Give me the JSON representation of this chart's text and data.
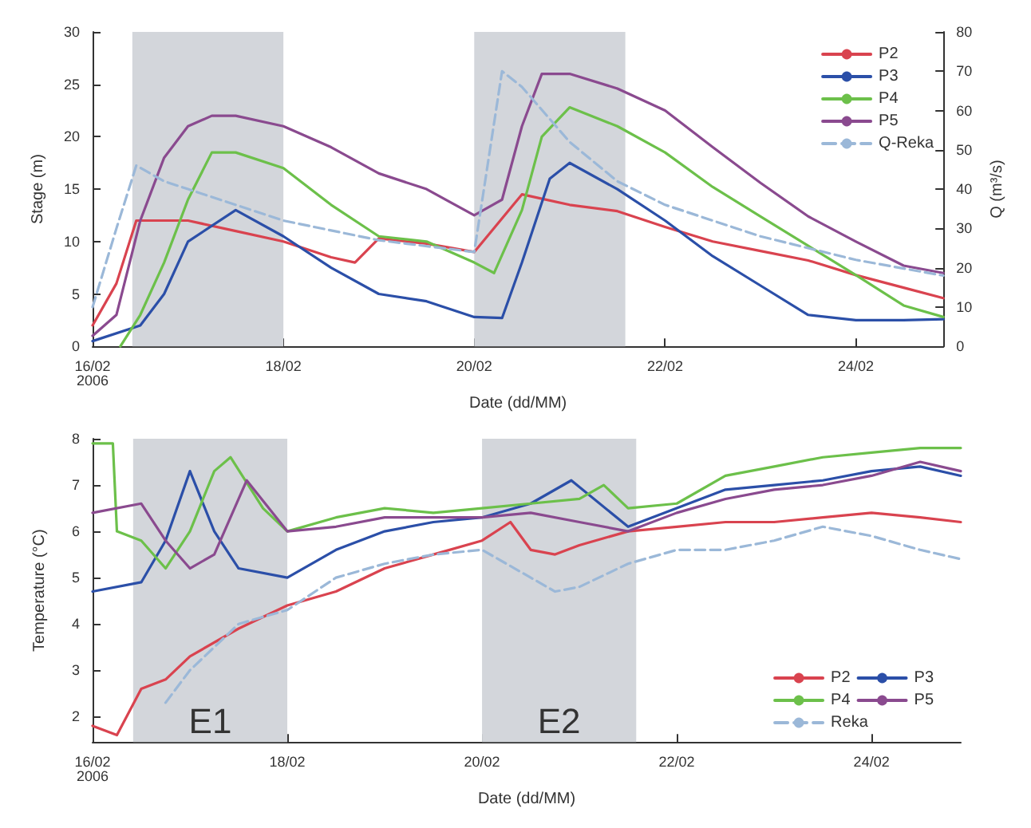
{
  "chart_data": [
    {
      "type": "line",
      "xlabel": "Date (dd/MM)",
      "ylabel": "Stage (m)",
      "y2label": "Q (m³/s)",
      "xlim": [
        "2006-02-16T00:00",
        "2006-02-24T22:00"
      ],
      "ylim": [
        0,
        30
      ],
      "y2lim": [
        0,
        80
      ],
      "xticks": [
        {
          "value": "2006-02-16T00:00",
          "label": "16/02\n2006"
        },
        {
          "value": "2006-02-18T00:00",
          "label": "18/02"
        },
        {
          "value": "2006-02-20T00:00",
          "label": "20/02"
        },
        {
          "value": "2006-02-22T00:00",
          "label": "22/02"
        },
        {
          "value": "2006-02-24T00:00",
          "label": "24/02"
        }
      ],
      "yticks": [
        0,
        5,
        10,
        15,
        20,
        25,
        30
      ],
      "y2ticks": [
        0,
        10,
        20,
        30,
        40,
        50,
        60,
        70,
        80
      ],
      "grid": false,
      "legend": "top right",
      "marker": "none",
      "bands": [
        {
          "axis": "x",
          "from": "2006-02-16T10:00",
          "to": "2006-02-18T00:00",
          "color": "#d3d6db"
        },
        {
          "axis": "x",
          "from": "2006-02-20T00:00",
          "to": "2006-02-21T14:00",
          "color": "#d3d6db"
        }
      ],
      "series": [
        {
          "name": "P2",
          "color": "#d9434f",
          "x": [
            "2006-02-16T00:00",
            "2006-02-16T06:00",
            "2006-02-16T11:00",
            "2006-02-17T00:00",
            "2006-02-17T12:00",
            "2006-02-18T00:00",
            "2006-02-18T12:00",
            "2006-02-18T18:00",
            "2006-02-19T00:00",
            "2006-02-19T12:00",
            "2006-02-20T00:00",
            "2006-02-20T12:00",
            "2006-02-21T00:00",
            "2006-02-21T12:00",
            "2006-02-22T00:00",
            "2006-02-22T12:00",
            "2006-02-23T00:00",
            "2006-02-23T12:00",
            "2006-02-24T00:00",
            "2006-02-24T12:00",
            "2006-02-24T22:00"
          ],
          "values": [
            2,
            6,
            12,
            12,
            11,
            10,
            8.5,
            8,
            10.3,
            9.8,
            9,
            14.5,
            13.5,
            12.9,
            11.4,
            10,
            9.1,
            8.2,
            6.8,
            5.6,
            4.6
          ]
        },
        {
          "name": "P3",
          "color": "#2b4fa8",
          "x": [
            "2006-02-16T00:00",
            "2006-02-16T12:00",
            "2006-02-16T18:00",
            "2006-02-17T00:00",
            "2006-02-17T12:00",
            "2006-02-18T00:00",
            "2006-02-18T12:00",
            "2006-02-19T00:00",
            "2006-02-19T12:00",
            "2006-02-20T00:00",
            "2006-02-20T07:00",
            "2006-02-20T12:00",
            "2006-02-20T19:00",
            "2006-02-21T00:00",
            "2006-02-21T12:00",
            "2006-02-22T00:00",
            "2006-02-22T12:00",
            "2006-02-23T00:00",
            "2006-02-23T12:00",
            "2006-02-24T00:00",
            "2006-02-24T12:00",
            "2006-02-24T22:00"
          ],
          "values": [
            0.5,
            2,
            5,
            10,
            13,
            10.5,
            7.5,
            5,
            4.3,
            2.8,
            2.7,
            8,
            16,
            17.5,
            15,
            12,
            8.6,
            5.8,
            3,
            2.5,
            2.5,
            2.6
          ]
        },
        {
          "name": "P4",
          "color": "#6cc04a",
          "x": [
            "2006-02-16T07:00",
            "2006-02-16T12:00",
            "2006-02-16T18:00",
            "2006-02-17T00:00",
            "2006-02-17T06:00",
            "2006-02-17T12:00",
            "2006-02-18T00:00",
            "2006-02-18T12:00",
            "2006-02-19T00:00",
            "2006-02-19T12:00",
            "2006-02-20T00:00",
            "2006-02-20T05:00",
            "2006-02-20T12:00",
            "2006-02-20T17:00",
            "2006-02-21T00:00",
            "2006-02-21T12:00",
            "2006-02-22T00:00",
            "2006-02-22T12:00",
            "2006-02-23T00:00",
            "2006-02-23T12:00",
            "2006-02-24T00:00",
            "2006-02-24T12:00",
            "2006-02-24T22:00"
          ],
          "values": [
            0,
            3,
            8,
            14,
            18.5,
            18.5,
            17,
            13.5,
            10.5,
            10,
            8,
            7,
            13,
            20,
            22.8,
            21,
            18.5,
            15.2,
            12.4,
            9.6,
            6.8,
            3.9,
            2.8
          ]
        },
        {
          "name": "P5",
          "color": "#8a4a8f",
          "x": [
            "2006-02-16T00:00",
            "2006-02-16T06:00",
            "2006-02-16T12:00",
            "2006-02-16T18:00",
            "2006-02-17T00:00",
            "2006-02-17T06:00",
            "2006-02-17T12:00",
            "2006-02-18T00:00",
            "2006-02-18T12:00",
            "2006-02-19T00:00",
            "2006-02-19T12:00",
            "2006-02-20T00:00",
            "2006-02-20T07:00",
            "2006-02-20T12:00",
            "2006-02-20T17:00",
            "2006-02-21T00:00",
            "2006-02-21T12:00",
            "2006-02-22T00:00",
            "2006-02-22T12:00",
            "2006-02-23T00:00",
            "2006-02-23T12:00",
            "2006-02-24T00:00",
            "2006-02-24T12:00",
            "2006-02-24T22:00"
          ],
          "values": [
            1,
            3,
            12,
            18,
            21,
            22,
            22,
            21,
            19,
            16.5,
            15,
            12.5,
            14,
            21,
            26,
            26,
            24.6,
            22.5,
            19,
            15.6,
            12.4,
            10,
            7.7,
            7
          ]
        },
        {
          "name": "Q-Reka",
          "color": "#9bb8d8",
          "axis": "y2",
          "line_style": "dashed",
          "x": [
            "2006-02-16T00:00",
            "2006-02-16T06:00",
            "2006-02-16T11:00",
            "2006-02-16T18:00",
            "2006-02-17T00:00",
            "2006-02-17T12:00",
            "2006-02-18T00:00",
            "2006-02-19T00:00",
            "2006-02-20T00:00",
            "2006-02-20T07:00",
            "2006-02-20T12:00",
            "2006-02-21T00:00",
            "2006-02-21T12:00",
            "2006-02-22T00:00",
            "2006-02-23T00:00",
            "2006-02-24T00:00",
            "2006-02-24T22:00"
          ],
          "values": [
            10,
            30,
            46,
            42,
            40,
            36,
            32,
            27,
            24,
            70,
            66,
            52,
            42,
            36,
            28,
            22,
            18
          ]
        }
      ]
    },
    {
      "type": "line",
      "xlabel": "Date (dd/MM)",
      "ylabel": "Temperature (°C)",
      "xlim": [
        "2006-02-16T00:00",
        "2006-02-24T22:00"
      ],
      "ylim": [
        1.45,
        8
      ],
      "xticks": [
        {
          "value": "2006-02-16T00:00",
          "label": "16/02\n2006"
        },
        {
          "value": "2006-02-18T00:00",
          "label": "18/02"
        },
        {
          "value": "2006-02-20T00:00",
          "label": "20/02"
        },
        {
          "value": "2006-02-22T00:00",
          "label": "22/02"
        },
        {
          "value": "2006-02-24T00:00",
          "label": "24/02"
        }
      ],
      "yticks": [
        2,
        3,
        4,
        5,
        6,
        7,
        8
      ],
      "grid": false,
      "legend": "bottom right",
      "marker": "none",
      "bands": [
        {
          "axis": "x",
          "from": "2006-02-16T10:00",
          "to": "2006-02-18T00:00",
          "label": "E1",
          "color": "#d3d6db"
        },
        {
          "axis": "x",
          "from": "2006-02-20T00:00",
          "to": "2006-02-21T14:00",
          "label": "E2",
          "color": "#d3d6db"
        }
      ],
      "series": [
        {
          "name": "P2",
          "color": "#d9434f",
          "x": [
            "2006-02-16T00:00",
            "2006-02-16T06:00",
            "2006-02-16T12:00",
            "2006-02-16T18:00",
            "2006-02-17T00:00",
            "2006-02-17T12:00",
            "2006-02-18T00:00",
            "2006-02-18T12:00",
            "2006-02-19T00:00",
            "2006-02-19T12:00",
            "2006-02-20T00:00",
            "2006-02-20T07:00",
            "2006-02-20T12:00",
            "2006-02-20T18:00",
            "2006-02-21T00:00",
            "2006-02-21T12:00",
            "2006-02-22T00:00",
            "2006-02-22T12:00",
            "2006-02-23T00:00",
            "2006-02-23T12:00",
            "2006-02-24T00:00",
            "2006-02-24T12:00",
            "2006-02-24T22:00"
          ],
          "values": [
            1.8,
            1.6,
            2.6,
            2.8,
            3.3,
            3.9,
            4.4,
            4.7,
            5.2,
            5.5,
            5.8,
            6.2,
            5.6,
            5.5,
            5.7,
            6,
            6.1,
            6.2,
            6.2,
            6.3,
            6.4,
            6.3,
            6.2
          ]
        },
        {
          "name": "P3",
          "color": "#2b4fa8",
          "x": [
            "2006-02-16T00:00",
            "2006-02-16T12:00",
            "2006-02-16T18:00",
            "2006-02-17T00:00",
            "2006-02-17T06:00",
            "2006-02-17T12:00",
            "2006-02-18T00:00",
            "2006-02-18T12:00",
            "2006-02-19T00:00",
            "2006-02-19T12:00",
            "2006-02-20T00:00",
            "2006-02-20T12:00",
            "2006-02-20T22:00",
            "2006-02-21T12:00",
            "2006-02-22T00:00",
            "2006-02-22T12:00",
            "2006-02-23T00:00",
            "2006-02-23T12:00",
            "2006-02-24T00:00",
            "2006-02-24T12:00",
            "2006-02-24T22:00"
          ],
          "values": [
            4.7,
            4.9,
            5.8,
            7.3,
            6,
            5.2,
            5,
            5.6,
            6,
            6.2,
            6.3,
            6.6,
            7.1,
            6.1,
            6.5,
            6.9,
            7,
            7.1,
            7.3,
            7.4,
            7.2
          ]
        },
        {
          "name": "P4",
          "color": "#6cc04a",
          "x": [
            "2006-02-16T00:00",
            "2006-02-16T05:00",
            "2006-02-16T06:00",
            "2006-02-16T12:00",
            "2006-02-16T18:00",
            "2006-02-17T00:00",
            "2006-02-17T06:00",
            "2006-02-17T10:00",
            "2006-02-17T18:00",
            "2006-02-18T00:00",
            "2006-02-18T12:00",
            "2006-02-19T00:00",
            "2006-02-19T12:00",
            "2006-02-20T00:00",
            "2006-02-20T12:00",
            "2006-02-21T00:00",
            "2006-02-21T06:00",
            "2006-02-21T12:00",
            "2006-02-22T00:00",
            "2006-02-22T12:00",
            "2006-02-23T00:00",
            "2006-02-23T12:00",
            "2006-02-24T00:00",
            "2006-02-24T12:00",
            "2006-02-24T22:00"
          ],
          "values": [
            7.9,
            7.9,
            6,
            5.8,
            5.2,
            6,
            7.3,
            7.6,
            6.5,
            6,
            6.3,
            6.5,
            6.4,
            6.5,
            6.6,
            6.7,
            7,
            6.5,
            6.6,
            7.2,
            7.4,
            7.6,
            7.7,
            7.8,
            7.8
          ]
        },
        {
          "name": "P5",
          "color": "#8a4a8f",
          "x": [
            "2006-02-16T00:00",
            "2006-02-16T12:00",
            "2006-02-16T18:00",
            "2006-02-17T00:00",
            "2006-02-17T06:00",
            "2006-02-17T12:00",
            "2006-02-17T14:00",
            "2006-02-18T00:00",
            "2006-02-18T12:00",
            "2006-02-19T00:00",
            "2006-02-19T12:00",
            "2006-02-20T00:00",
            "2006-02-20T12:00",
            "2006-02-21T00:00",
            "2006-02-21T12:00",
            "2006-02-22T00:00",
            "2006-02-22T12:00",
            "2006-02-23T00:00",
            "2006-02-23T12:00",
            "2006-02-24T00:00",
            "2006-02-24T12:00",
            "2006-02-24T22:00"
          ],
          "values": [
            6.4,
            6.6,
            5.8,
            5.2,
            5.5,
            6.7,
            7.1,
            6,
            6.1,
            6.3,
            6.3,
            6.3,
            6.4,
            6.2,
            6,
            6.4,
            6.7,
            6.9,
            7,
            7.2,
            7.5,
            7.3
          ]
        },
        {
          "name": "Reka",
          "color": "#9bb8d8",
          "line_style": "dashed",
          "x": [
            "2006-02-16T18:00",
            "2006-02-17T00:00",
            "2006-02-17T12:00",
            "2006-02-18T00:00",
            "2006-02-18T12:00",
            "2006-02-19T00:00",
            "2006-02-19T12:00",
            "2006-02-20T00:00",
            "2006-02-20T12:00",
            "2006-02-20T18:00",
            "2006-02-21T00:00",
            "2006-02-21T12:00",
            "2006-02-22T00:00",
            "2006-02-22T12:00",
            "2006-02-23T00:00",
            "2006-02-23T12:00",
            "2006-02-24T00:00",
            "2006-02-24T12:00",
            "2006-02-24T22:00"
          ],
          "values": [
            2.3,
            3,
            4,
            4.3,
            5,
            5.3,
            5.5,
            5.6,
            5,
            4.7,
            4.8,
            5.3,
            5.6,
            5.6,
            5.8,
            6.1,
            5.9,
            5.6,
            5.4
          ]
        }
      ]
    }
  ]
}
